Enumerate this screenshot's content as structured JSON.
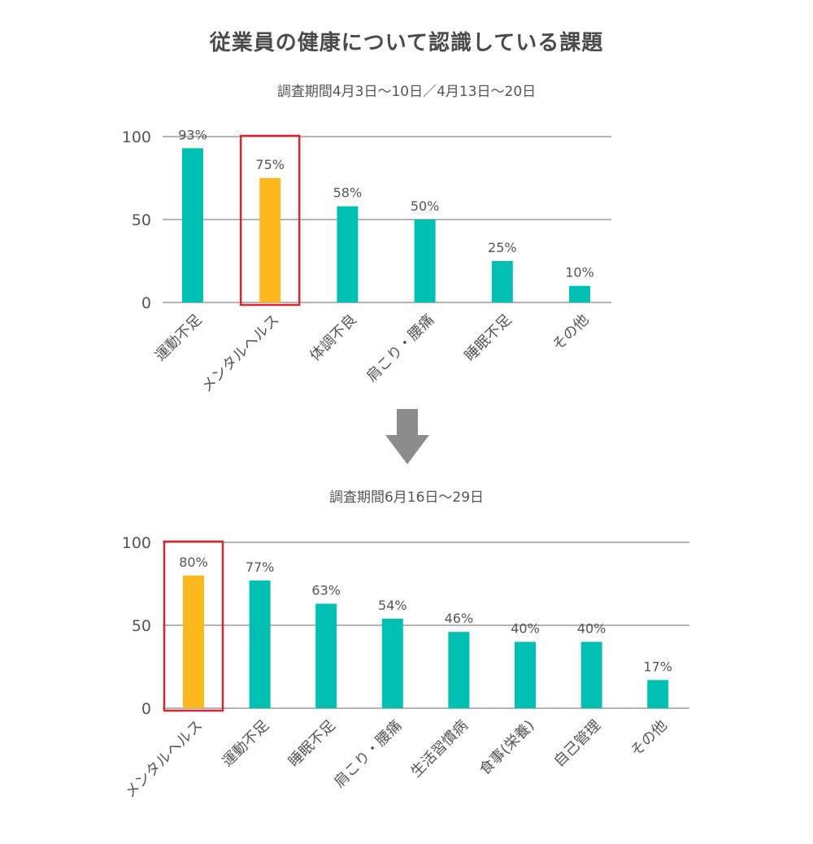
{
  "title": "従業員の健康について認識している課題",
  "colors": {
    "bar": "#00bfb3",
    "highlight": "#fdb81e",
    "highlight_box": "#d9262e",
    "grid": "#888888",
    "arrow": "#8c8c8c",
    "text": "#555555"
  },
  "transition_icon": "arrow-down-icon",
  "chart_data": [
    {
      "type": "bar",
      "subtitle": "調査期間4月3日〜10日／4月13日〜20日",
      "categories": [
        "運動不足",
        "メンタルヘルス",
        "体調不良",
        "肩こり・腰痛",
        "睡眠不足",
        "その他"
      ],
      "values": [
        93,
        75,
        58,
        50,
        25,
        10
      ],
      "data_labels": [
        "93%",
        "75%",
        "58%",
        "50%",
        "25%",
        "10%"
      ],
      "highlight_index": 1,
      "yticks": [
        "0",
        "50",
        "100"
      ],
      "ylim": [
        0,
        100
      ],
      "grid": true
    },
    {
      "type": "bar",
      "subtitle": "調査期間6月16日〜29日",
      "categories": [
        "メンタルヘルス",
        "運動不足",
        "睡眠不足",
        "肩こり・腰痛",
        "生活習慣病",
        "食事(栄養)",
        "自己管理",
        "その他"
      ],
      "values": [
        80,
        77,
        63,
        54,
        46,
        40,
        40,
        17
      ],
      "data_labels": [
        "80%",
        "77%",
        "63%",
        "54%",
        "46%",
        "40%",
        "40%",
        "17%"
      ],
      "highlight_index": 0,
      "yticks": [
        "0",
        "50",
        "100"
      ],
      "ylim": [
        0,
        100
      ],
      "grid": true
    }
  ]
}
